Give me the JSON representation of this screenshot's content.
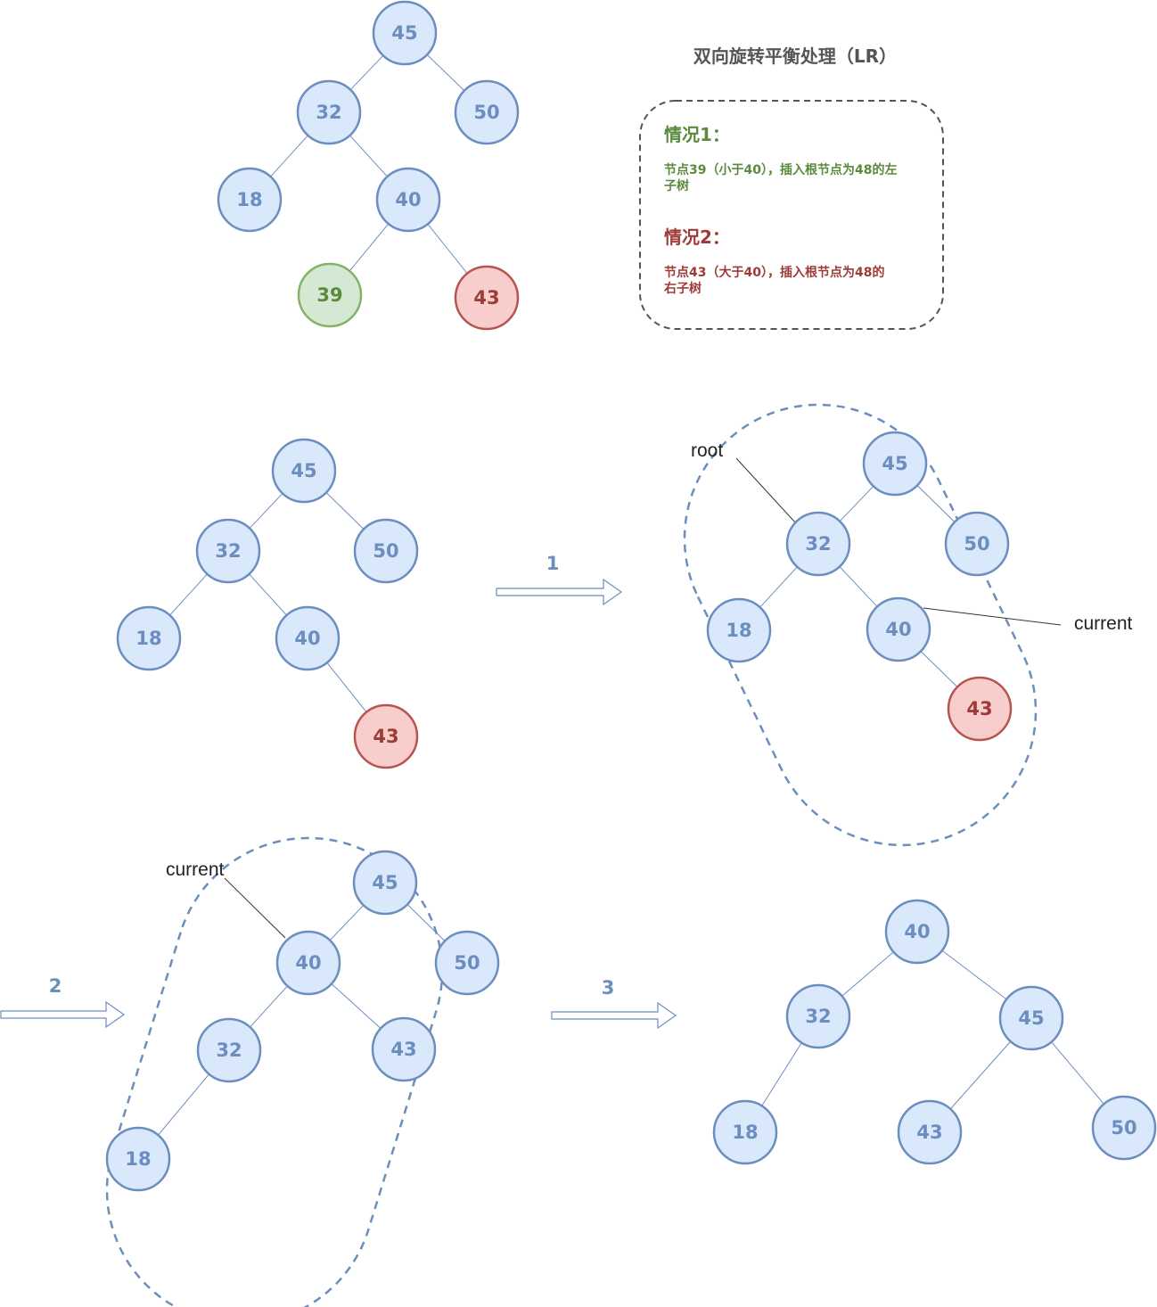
{
  "title": "双向旋转平衡处理（LR）",
  "legend": {
    "case1_title": "情况1：",
    "case1_line1": "节点39（小于40），插入根节点为48的左",
    "case1_line2": "子树",
    "case2_title": "情况2：",
    "case2_line1": "节点43（大于40），插入根节点为48的",
    "case2_line2": "右子树"
  },
  "colors": {
    "node_fill": "#dae8fc",
    "node_stroke": "#6c8ebf",
    "node_text": "#6c8ebf",
    "green_fill": "#d5e8d4",
    "green_stroke": "#82b366",
    "green_text": "#5b8a3c",
    "red_fill": "#f8cecc",
    "red_stroke": "#b85450",
    "red_text": "#9c3b37",
    "edge": "#6c8ebf",
    "case1_color": "#5b8a3c",
    "case2_color": "#9c3b37"
  },
  "steps": [
    "1",
    "2",
    "3"
  ],
  "labels": {
    "root": "root",
    "current1": "current",
    "current2": "current"
  },
  "trees": [
    {
      "name": "original-tree",
      "nodes": [
        "45",
        "32",
        "50",
        "18",
        "40",
        "39",
        "43"
      ],
      "edges": [
        [
          "45",
          "32"
        ],
        [
          "45",
          "50"
        ],
        [
          "32",
          "18"
        ],
        [
          "32",
          "40"
        ],
        [
          "40",
          "39"
        ],
        [
          "40",
          "43"
        ]
      ],
      "highlight": {
        "39": "green",
        "43": "red"
      }
    },
    {
      "name": "inserted-tree",
      "nodes": [
        "45",
        "32",
        "50",
        "18",
        "40",
        "43"
      ],
      "edges": [
        [
          "45",
          "32"
        ],
        [
          "45",
          "50"
        ],
        [
          "32",
          "18"
        ],
        [
          "32",
          "40"
        ],
        [
          "40",
          "43"
        ]
      ],
      "highlight": {
        "43": "red"
      }
    },
    {
      "name": "step1-tree",
      "nodes": [
        "45",
        "32",
        "50",
        "18",
        "40",
        "43"
      ],
      "edges": [
        [
          "45",
          "32"
        ],
        [
          "45",
          "50"
        ],
        [
          "32",
          "18"
        ],
        [
          "32",
          "40"
        ],
        [
          "40",
          "43"
        ]
      ],
      "highlight": {
        "43": "red"
      }
    },
    {
      "name": "step2-tree",
      "nodes": [
        "45",
        "40",
        "50",
        "32",
        "43",
        "18"
      ],
      "edges": [
        [
          "45",
          "40"
        ],
        [
          "45",
          "50"
        ],
        [
          "40",
          "32"
        ],
        [
          "40",
          "43"
        ],
        [
          "32",
          "18"
        ]
      ],
      "highlight": {}
    },
    {
      "name": "final-tree",
      "nodes": [
        "40",
        "32",
        "45",
        "18",
        "43",
        "50"
      ],
      "edges": [
        [
          "40",
          "32"
        ],
        [
          "40",
          "45"
        ],
        [
          "32",
          "18"
        ],
        [
          "45",
          "43"
        ],
        [
          "45",
          "50"
        ]
      ],
      "highlight": {}
    }
  ]
}
